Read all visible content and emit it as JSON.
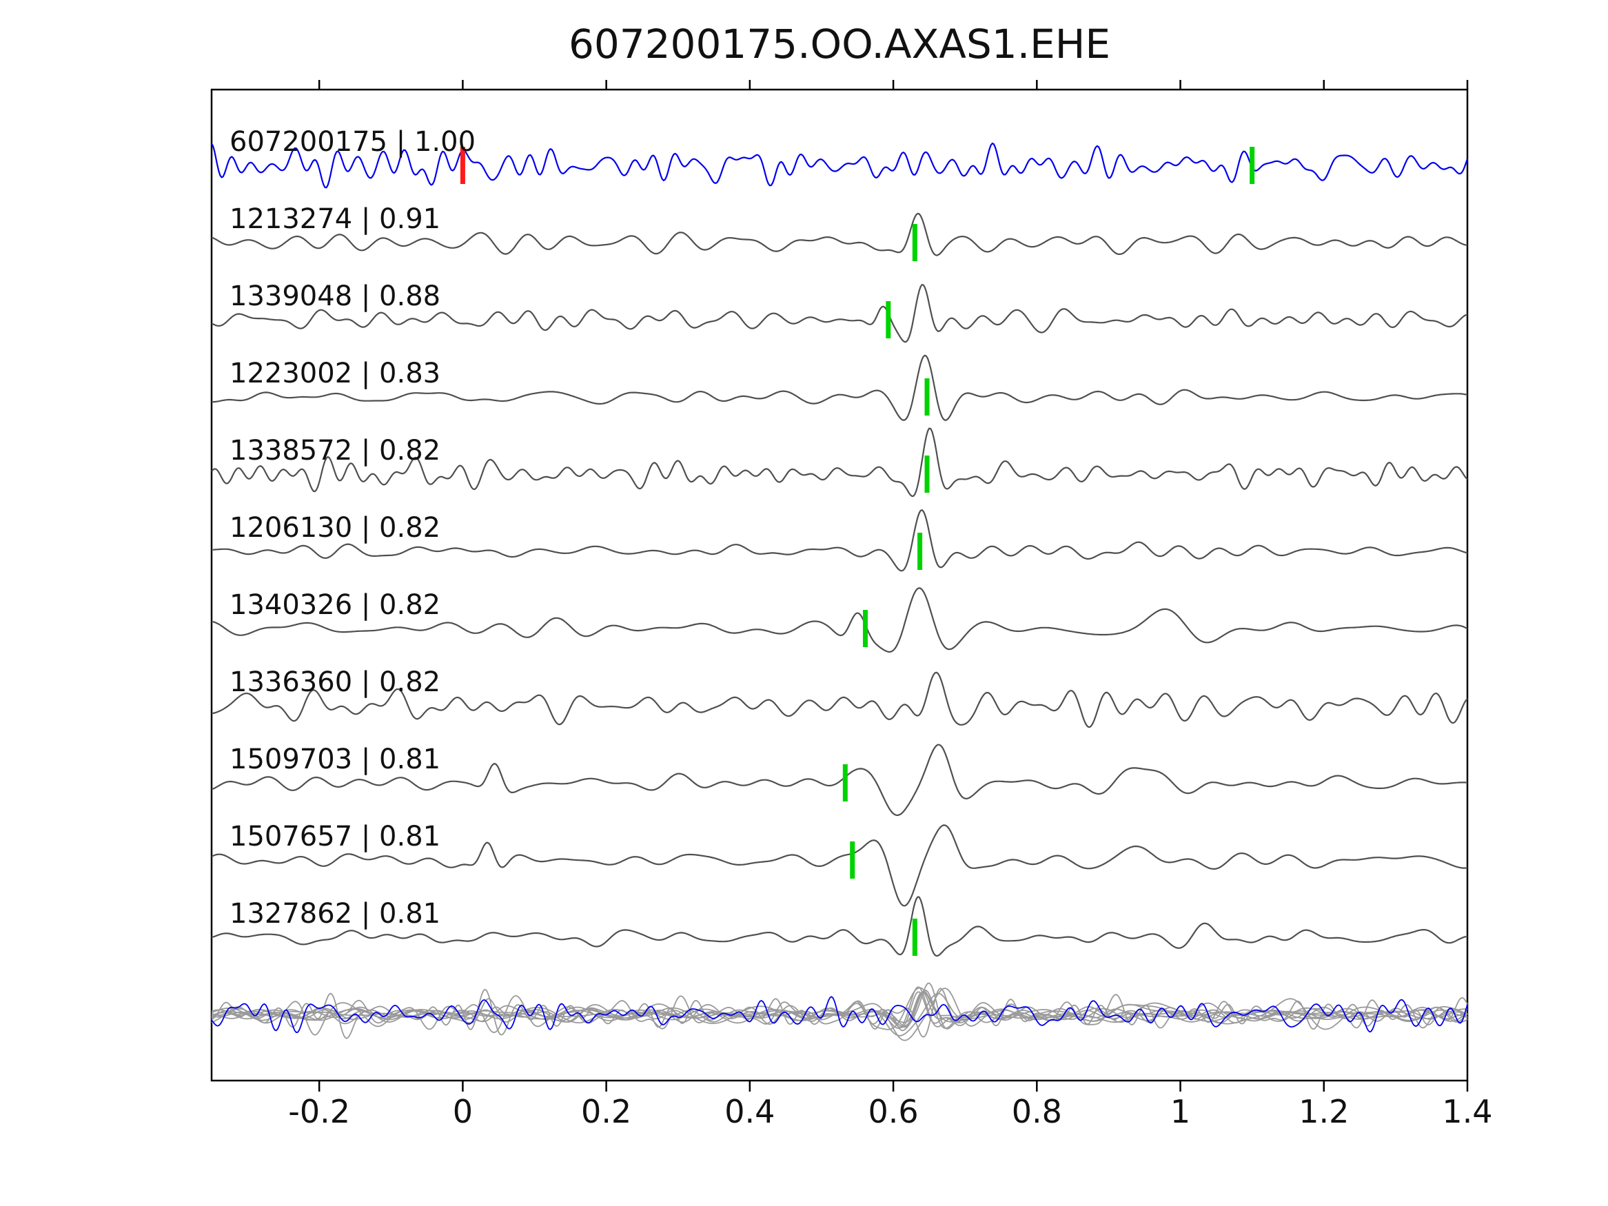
{
  "title": "607200175.OO.AXAS1.EHE",
  "chart_data": {
    "type": "line",
    "title": "607200175.OO.AXAS1.EHE",
    "xlabel": "",
    "ylabel": "",
    "xlim": [
      -0.35,
      1.4
    ],
    "x_ticks": [
      -0.2,
      0,
      0.2,
      0.4,
      0.6,
      0.8,
      1,
      1.2,
      1.4
    ],
    "x_tick_labels": [
      "-0.2",
      "0",
      "0.2",
      "0.4",
      "0.6",
      "0.8",
      "1",
      "1.2",
      "1.4"
    ],
    "grid": false,
    "legend": null,
    "description": "Template waveform (blue) compared against matched event waveforms (gray), each labeled 'event_id | correlation'. Green/red vertical bars mark pick times. Bottom row overlays all matched traces (gray) with the template (blue).",
    "colors": {
      "template": "#0000ee",
      "match": "#4f4f4f",
      "overlay_gray": "#9a9a9a",
      "pick_green": "#00d200",
      "pick_red": "#ff1a1a",
      "frame": "#000000"
    },
    "traces": [
      {
        "id": "607200175",
        "correlation": "1.00",
        "label": "607200175 | 1.00",
        "role": "template",
        "picks": [
          {
            "x": 0.0,
            "color": "#ff1a1a"
          },
          {
            "x": 1.1,
            "color": "#00d200"
          }
        ],
        "synth": {
          "seed": 101,
          "f0": 7,
          "f1": 42,
          "namp": 16,
          "pulses": []
        }
      },
      {
        "id": "1213274",
        "correlation": "0.91",
        "label": "1213274 | 0.91",
        "role": "match",
        "picks": [
          {
            "x": 0.63,
            "color": "#00d200"
          }
        ],
        "synth": {
          "seed": 202,
          "f0": 4,
          "f1": 22,
          "namp": 7,
          "pulses": [
            {
              "c": 0.635,
              "w": 0.022,
              "a": 50
            }
          ]
        }
      },
      {
        "id": "1339048",
        "correlation": "0.88",
        "label": "1339048 | 0.88",
        "role": "match",
        "picks": [
          {
            "x": 0.593,
            "color": "#00d200"
          }
        ],
        "synth": {
          "seed": 303,
          "f0": 5,
          "f1": 26,
          "namp": 9,
          "pulses": [
            {
              "c": 0.64,
              "w": 0.02,
              "a": 52
            },
            {
              "c": 0.585,
              "w": 0.015,
              "a": 18
            }
          ]
        }
      },
      {
        "id": "1223002",
        "correlation": "0.83",
        "label": "1223002 | 0.83",
        "role": "match",
        "picks": [
          {
            "x": 0.647,
            "color": "#00d200"
          }
        ],
        "synth": {
          "seed": 404,
          "f0": 4,
          "f1": 20,
          "namp": 6,
          "pulses": [
            {
              "c": 0.645,
              "w": 0.024,
              "a": 58
            }
          ]
        }
      },
      {
        "id": "1338572",
        "correlation": "0.82",
        "label": "1338572 | 0.82",
        "role": "match",
        "picks": [
          {
            "x": 0.647,
            "color": "#00d200"
          }
        ],
        "synth": {
          "seed": 505,
          "f0": 7,
          "f1": 34,
          "namp": 12,
          "pulses": [
            {
              "c": 0.65,
              "w": 0.02,
              "a": 55
            }
          ]
        }
      },
      {
        "id": "1206130",
        "correlation": "0.82",
        "label": "1206130 | 0.82",
        "role": "match",
        "picks": [
          {
            "x": 0.637,
            "color": "#00d200"
          }
        ],
        "synth": {
          "seed": 606,
          "f0": 4,
          "f1": 20,
          "namp": 6,
          "pulses": [
            {
              "c": 0.64,
              "w": 0.022,
              "a": 52
            }
          ]
        }
      },
      {
        "id": "1340326",
        "correlation": "0.82",
        "label": "1340326 | 0.82",
        "role": "match",
        "picks": [
          {
            "x": 0.561,
            "color": "#00d200"
          }
        ],
        "synth": {
          "seed": 707,
          "f0": 3,
          "f1": 15,
          "namp": 8,
          "pulses": [
            {
              "c": 0.635,
              "w": 0.034,
              "a": 60
            },
            {
              "c": 0.55,
              "w": 0.02,
              "a": 22
            },
            {
              "c": 0.97,
              "w": 0.05,
              "a": 25
            },
            {
              "c": 1.16,
              "w": 0.04,
              "a": 18
            }
          ]
        }
      },
      {
        "id": "1336360",
        "correlation": "0.82",
        "label": "1336360 | 0.82",
        "role": "match",
        "picks": [],
        "synth": {
          "seed": 808,
          "f0": 5,
          "f1": 28,
          "namp": 13,
          "pulses": [
            {
              "c": 0.66,
              "w": 0.024,
              "a": 38
            }
          ]
        }
      },
      {
        "id": "1509703",
        "correlation": "0.81",
        "label": "1509703 | 0.81",
        "role": "match",
        "picks": [
          {
            "x": 0.533,
            "color": "#00d200"
          }
        ],
        "synth": {
          "seed": 909,
          "f0": 4,
          "f1": 18,
          "namp": 6,
          "pulses": [
            {
              "c": 0.045,
              "w": 0.018,
              "a": 22
            },
            {
              "c": 0.605,
              "w": 0.035,
              "a": -48
            },
            {
              "c": 0.665,
              "w": 0.028,
              "a": 38
            },
            {
              "c": 0.95,
              "w": 0.06,
              "a": 22
            }
          ]
        }
      },
      {
        "id": "1507657",
        "correlation": "0.81",
        "label": "1507657 | 0.81",
        "role": "match",
        "picks": [
          {
            "x": 0.543,
            "color": "#00d200"
          }
        ],
        "synth": {
          "seed": 1010,
          "f0": 4,
          "f1": 18,
          "namp": 6,
          "pulses": [
            {
              "c": 0.035,
              "w": 0.018,
              "a": 26
            },
            {
              "c": 0.615,
              "w": 0.035,
              "a": -52
            },
            {
              "c": 0.675,
              "w": 0.028,
              "a": 40
            },
            {
              "c": 0.95,
              "w": 0.06,
              "a": 20
            }
          ]
        }
      },
      {
        "id": "1327862",
        "correlation": "0.81",
        "label": "1327862 | 0.81",
        "role": "match",
        "picks": [
          {
            "x": 0.63,
            "color": "#00d200"
          }
        ],
        "synth": {
          "seed": 1111,
          "f0": 4,
          "f1": 22,
          "namp": 6,
          "pulses": [
            {
              "c": 0.635,
              "w": 0.02,
              "a": 52
            },
            {
              "c": 0.72,
              "w": 0.03,
              "a": 18
            },
            {
              "c": 1.04,
              "w": 0.03,
              "a": 20
            }
          ]
        }
      }
    ],
    "overlay": {
      "description": "All matched traces overlaid in gray with template in blue",
      "gray_amp_scale": 1.0,
      "gray_pulse_scale": 0.7,
      "blue_synth": {
        "seed": 1212,
        "f0": 7,
        "f1": 40,
        "namp": 13,
        "pulses": [
          {
            "c": 0.03,
            "w": 0.02,
            "a": 24
          }
        ]
      }
    }
  }
}
